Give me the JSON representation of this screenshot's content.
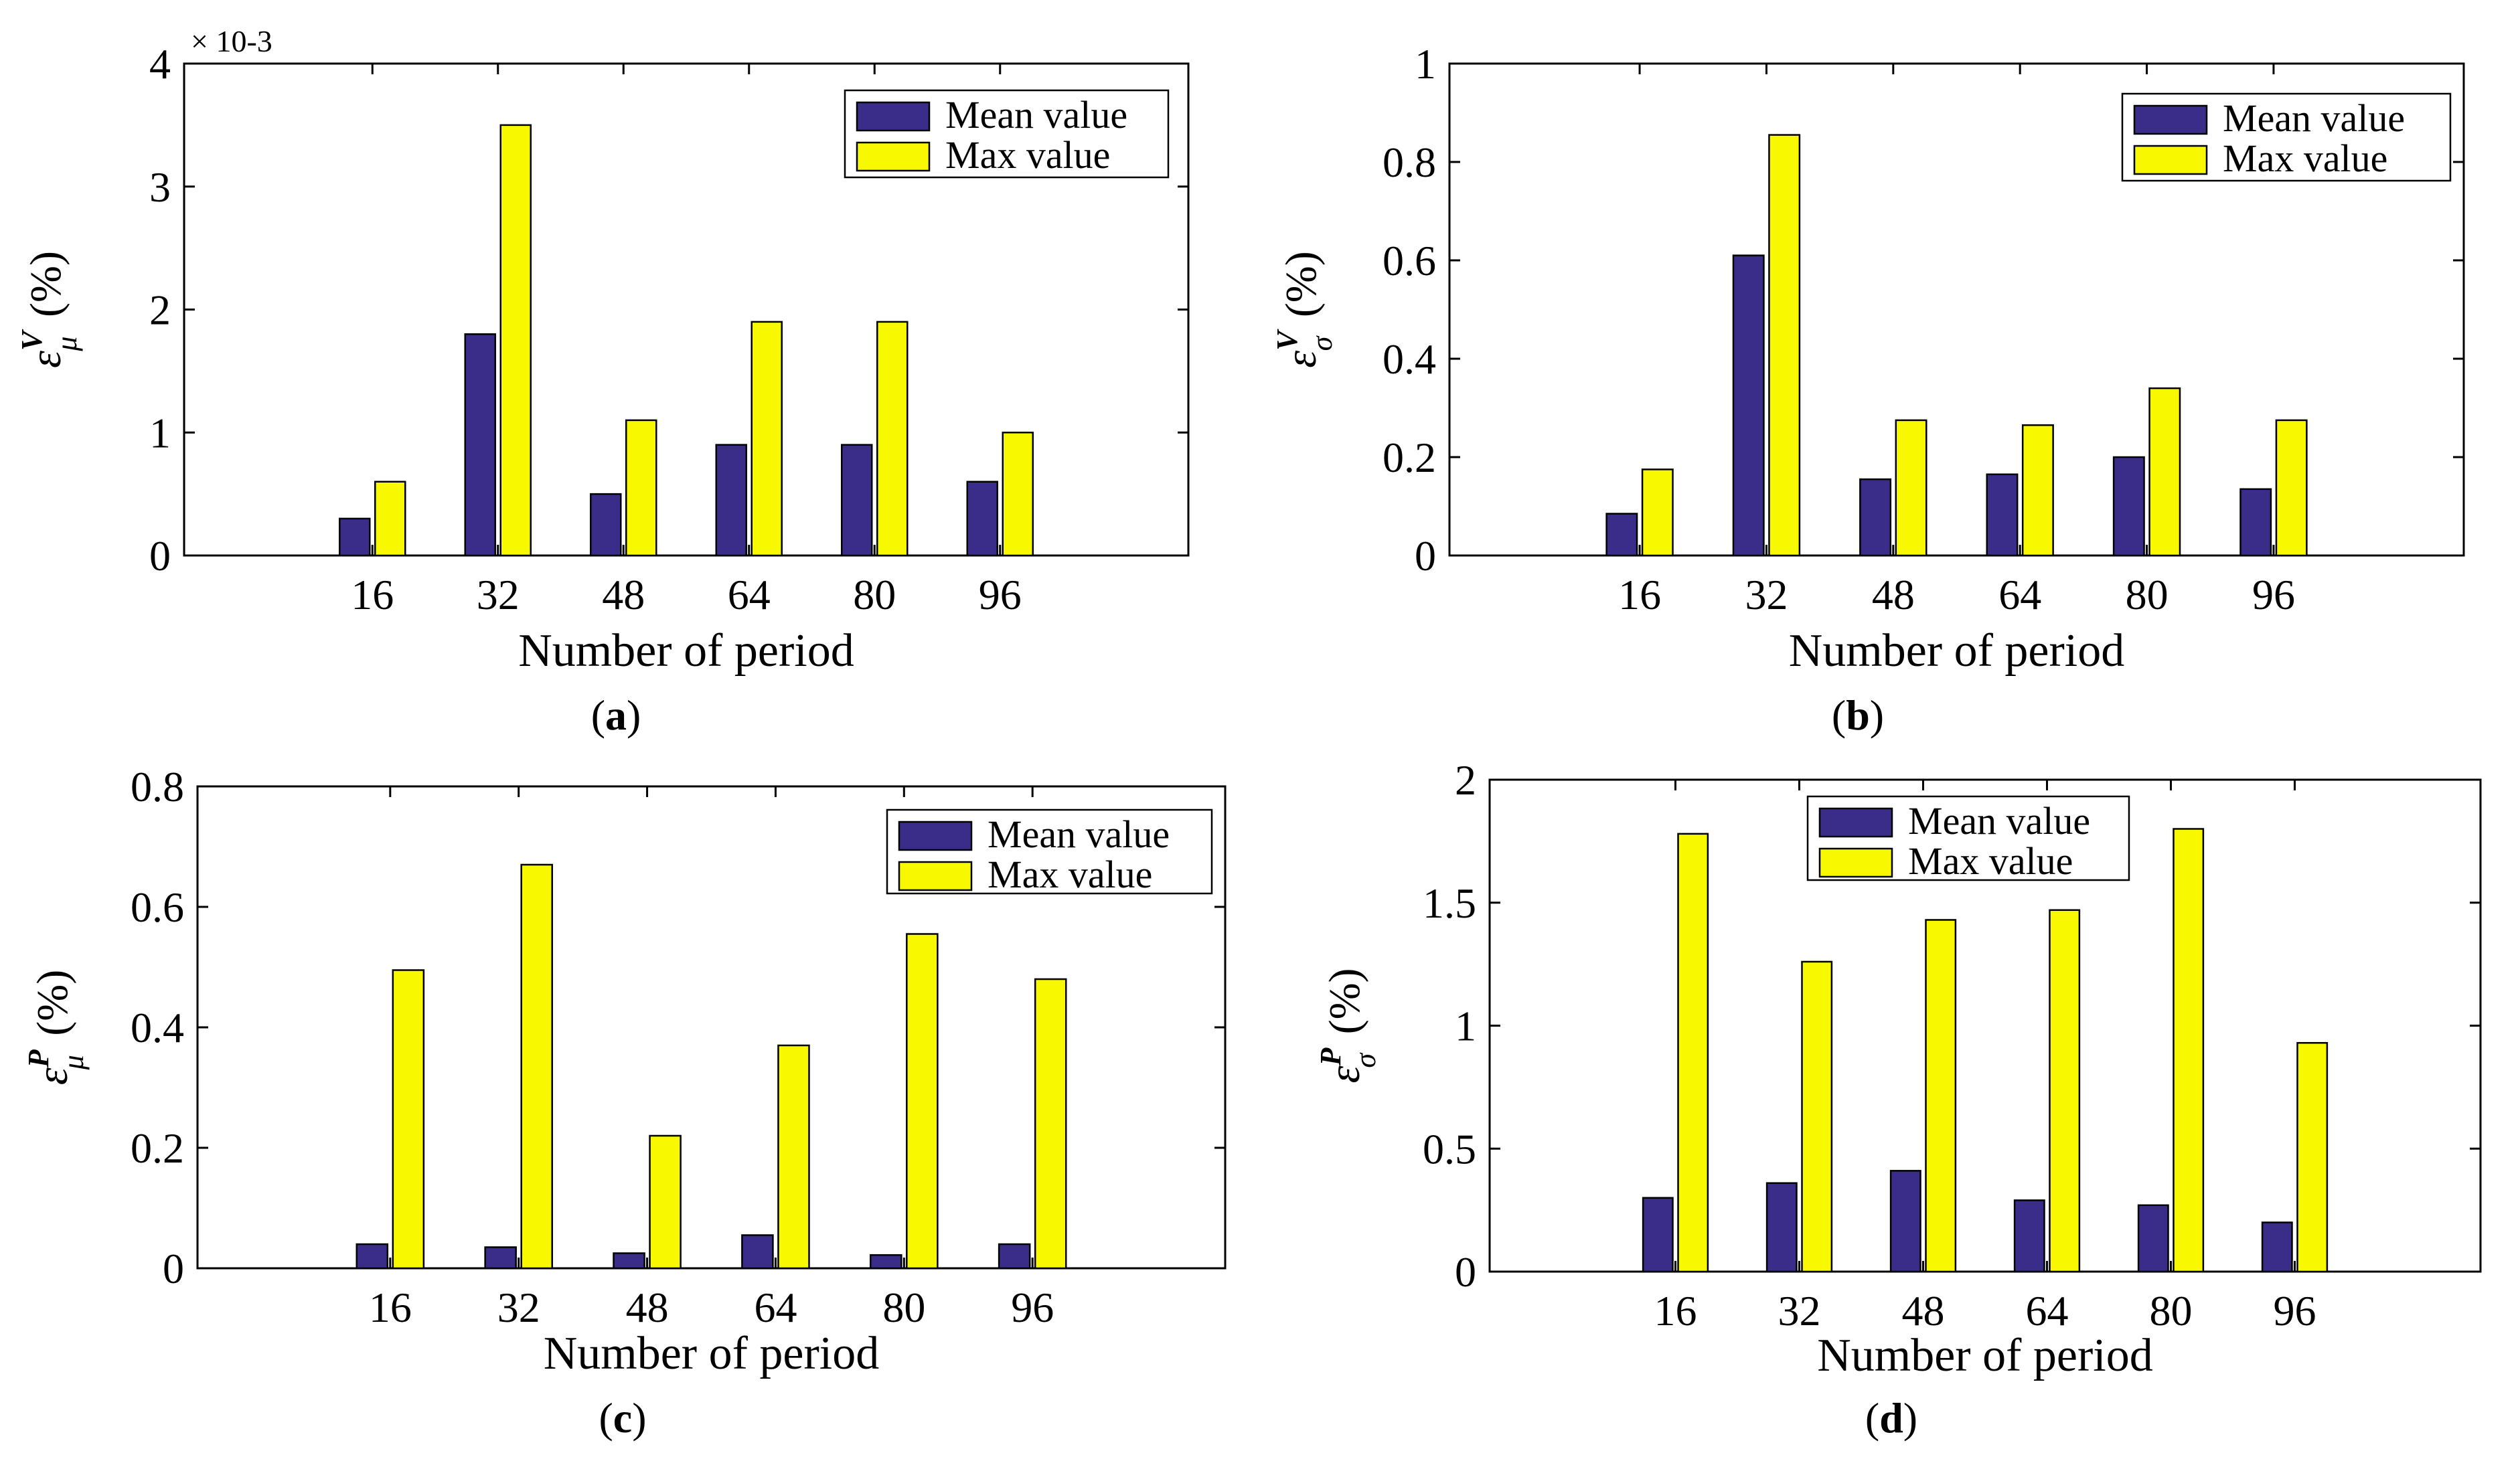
{
  "colors": {
    "mean": "#3a2d8a",
    "max": "#f8f800",
    "axis": "#000000"
  },
  "chart_data": [
    {
      "id": "a",
      "type": "bar",
      "panel_label": "a",
      "xlabel": "Number of period",
      "ylabel": {
        "symbol": "ε",
        "sup": "V",
        "sub": "μ",
        "unit": "(%)"
      },
      "y_exponent": "× 10-3",
      "categories": [
        "16",
        "32",
        "48",
        "64",
        "80",
        "96"
      ],
      "ylim": [
        0,
        4
      ],
      "yticks": [
        0,
        1,
        2,
        3,
        4
      ],
      "legend": {
        "position": "top-right"
      },
      "series": [
        {
          "name": "Mean value",
          "values": [
            0.3,
            1.8,
            0.5,
            0.9,
            0.9,
            0.6
          ]
        },
        {
          "name": "Max value",
          "values": [
            0.6,
            3.5,
            1.1,
            1.9,
            1.9,
            1.0
          ]
        }
      ]
    },
    {
      "id": "b",
      "type": "bar",
      "panel_label": "b",
      "xlabel": "Number of period",
      "ylabel": {
        "symbol": "ε",
        "sup": "V",
        "sub": "σ",
        "unit": "(%)"
      },
      "categories": [
        "16",
        "32",
        "48",
        "64",
        "80",
        "96"
      ],
      "ylim": [
        0,
        1
      ],
      "yticks": [
        0,
        0.2,
        0.4,
        0.6,
        0.8,
        1
      ],
      "legend": {
        "position": "top-right"
      },
      "series": [
        {
          "name": "Mean value",
          "values": [
            0.085,
            0.61,
            0.155,
            0.165,
            0.2,
            0.135
          ]
        },
        {
          "name": "Max value",
          "values": [
            0.175,
            0.855,
            0.275,
            0.265,
            0.34,
            0.275
          ]
        }
      ]
    },
    {
      "id": "c",
      "type": "bar",
      "panel_label": "c",
      "xlabel": "Number of period",
      "ylabel": {
        "symbol": "ε",
        "sup": "P",
        "sub": "μ",
        "unit": "(%)"
      },
      "categories": [
        "16",
        "32",
        "48",
        "64",
        "80",
        "96"
      ],
      "ylim": [
        0,
        0.8
      ],
      "yticks": [
        0,
        0.2,
        0.4,
        0.6,
        0.8
      ],
      "legend": {
        "position": "top-right"
      },
      "series": [
        {
          "name": "Mean value",
          "values": [
            0.04,
            0.035,
            0.025,
            0.055,
            0.022,
            0.04
          ]
        },
        {
          "name": "Max value",
          "values": [
            0.495,
            0.67,
            0.22,
            0.37,
            0.555,
            0.48
          ]
        }
      ]
    },
    {
      "id": "d",
      "type": "bar",
      "panel_label": "d",
      "xlabel": "Number of period",
      "ylabel": {
        "symbol": "ε",
        "sup": "P",
        "sub": "σ",
        "unit": "(%)"
      },
      "categories": [
        "16",
        "32",
        "48",
        "64",
        "80",
        "96"
      ],
      "ylim": [
        0,
        2
      ],
      "yticks": [
        0,
        0.5,
        1,
        1.5,
        2
      ],
      "legend": {
        "position": "top-center"
      },
      "series": [
        {
          "name": "Mean value",
          "values": [
            0.3,
            0.36,
            0.41,
            0.29,
            0.27,
            0.2
          ]
        },
        {
          "name": "Max value",
          "values": [
            1.78,
            1.26,
            1.43,
            1.47,
            1.8,
            0.93
          ]
        }
      ]
    }
  ]
}
